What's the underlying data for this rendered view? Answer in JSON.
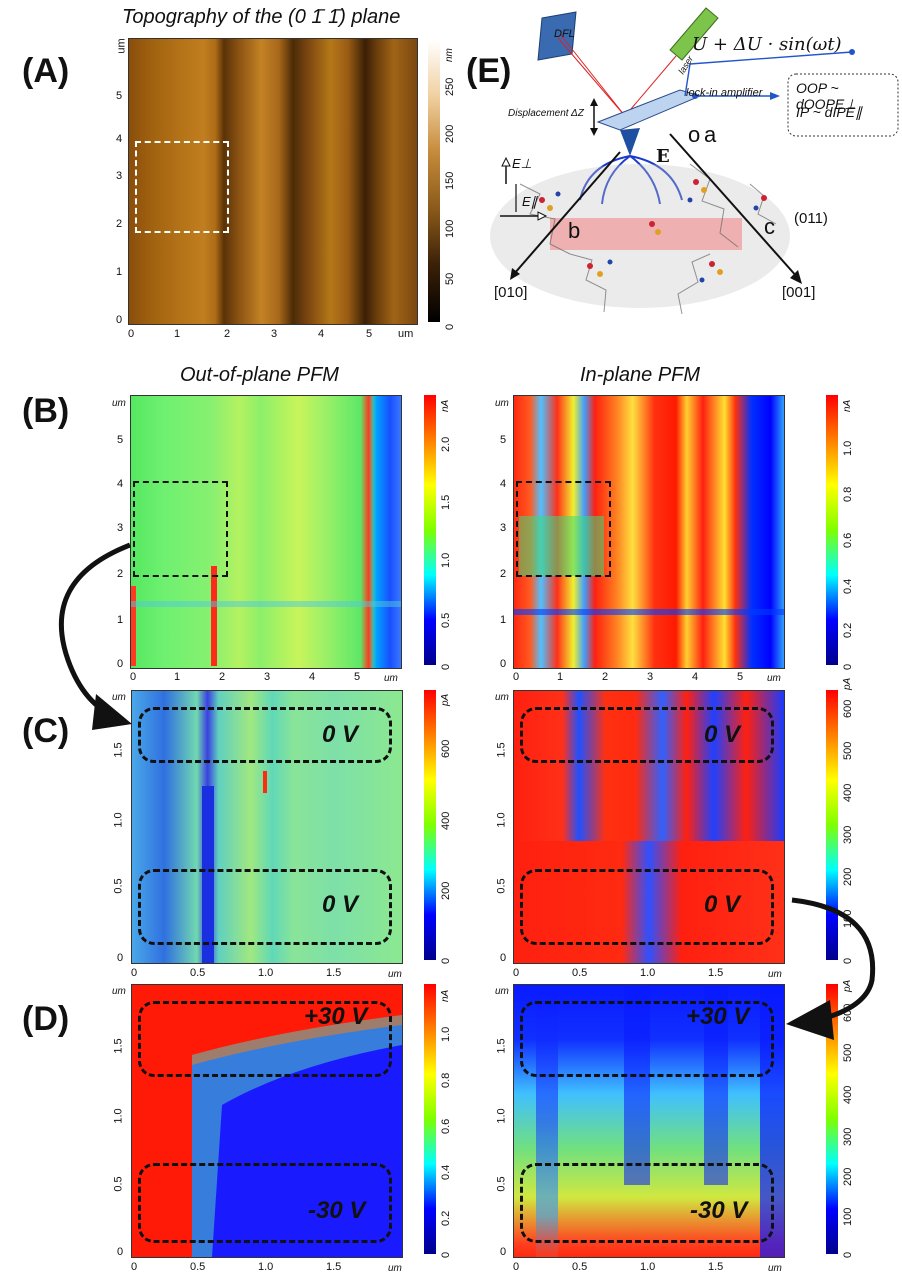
{
  "panels": {
    "A": {
      "label": "(A)",
      "title": "Topography of the (0 1̄ 1̄) plane",
      "xticks": [
        "0",
        "1",
        "2",
        "3",
        "4",
        "5"
      ],
      "yticks": [
        "0",
        "1",
        "2",
        "3",
        "4",
        "5"
      ],
      "x_unit": "um",
      "y_unit": "um",
      "cbar_ticks": [
        "0",
        "50",
        "100",
        "150",
        "200",
        "250"
      ],
      "cbar_unit": "nm"
    },
    "B": {
      "label": "(B)",
      "left_title": "Out-of-plane PFM",
      "right_title": "In-plane PFM",
      "xticks": [
        "0",
        "1",
        "2",
        "3",
        "4",
        "5"
      ],
      "yticks": [
        "0",
        "1",
        "2",
        "3",
        "4",
        "5"
      ],
      "x_unit": "um",
      "y_unit": "um",
      "left_cbar_ticks": [
        "0",
        "0.5",
        "1.0",
        "1.5",
        "2.0"
      ],
      "left_cbar_unit": "nA",
      "right_cbar_ticks": [
        "0",
        "0.2",
        "0.4",
        "0.6",
        "0.8",
        "1.0"
      ],
      "right_cbar_unit": "nA"
    },
    "C": {
      "label": "(C)",
      "xticks": [
        "0",
        "0.5",
        "1.0",
        "1.5"
      ],
      "yticks": [
        "0",
        "0.5",
        "1.0",
        "1.5"
      ],
      "x_unit": "um",
      "y_unit": "um",
      "left_cbar_ticks": [
        "0",
        "200",
        "400",
        "600"
      ],
      "left_cbar_unit": "pA",
      "right_cbar_ticks": [
        "0",
        "100",
        "200",
        "300",
        "400",
        "500",
        "600"
      ],
      "right_cbar_unit": "pA",
      "box_labels": [
        "0 V",
        "0 V"
      ]
    },
    "D": {
      "label": "(D)",
      "xticks": [
        "0",
        "0.5",
        "1.0",
        "1.5"
      ],
      "yticks": [
        "0",
        "0.5",
        "1.0",
        "1.5"
      ],
      "x_unit": "um",
      "y_unit": "um",
      "left_cbar_ticks": [
        "0",
        "0.2",
        "0.4",
        "0.6",
        "0.8",
        "1.0"
      ],
      "left_cbar_unit": "nA",
      "right_cbar_ticks": [
        "0",
        "100",
        "200",
        "300",
        "400",
        "500",
        "600"
      ],
      "right_cbar_unit": "pA",
      "box_labels": [
        "+30 V",
        "-30 V"
      ]
    },
    "E": {
      "label": "(E)",
      "formula": "U + ΔU · sin(ωt)",
      "dfl": "DFL",
      "laser": "laser",
      "lockin": "lock-in amplifier",
      "displacement": "Displacement",
      "dz": "ΔZ",
      "oop": "OOP ~ dOOPE⊥",
      "ip": "IP ~ dIPE∥",
      "efield": "E",
      "eperp": "E⊥",
      "epar": "E∥",
      "plane": "(011)",
      "dir1": "[010]",
      "dir2": "[001]",
      "axis_o": "o",
      "axis_a": "a",
      "axis_b": "b",
      "axis_c": "c"
    }
  }
}
